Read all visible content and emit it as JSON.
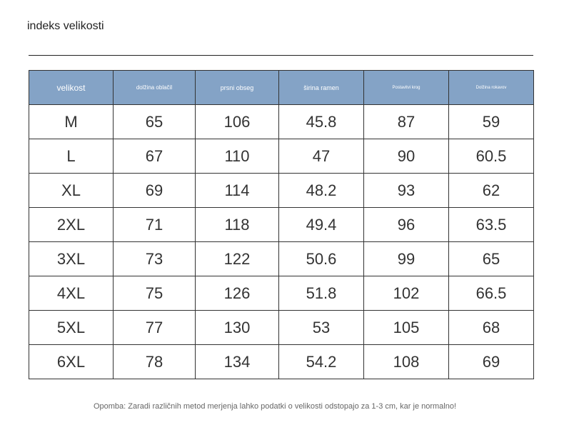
{
  "title": "indeks velikosti",
  "table": {
    "headers": [
      "velikost",
      "dolžina oblačil",
      "prsni obseg",
      "širina ramen",
      "Postavitvi krog",
      "Dolžina rokavov"
    ],
    "rows": [
      [
        "M",
        "65",
        "106",
        "45.8",
        "87",
        "59"
      ],
      [
        "L",
        "67",
        "110",
        "47",
        "90",
        "60.5"
      ],
      [
        "XL",
        "69",
        "114",
        "48.2",
        "93",
        "62"
      ],
      [
        "2XL",
        "71",
        "118",
        "49.4",
        "96",
        "63.5"
      ],
      [
        "3XL",
        "73",
        "122",
        "50.6",
        "99",
        "65"
      ],
      [
        "4XL",
        "75",
        "126",
        "51.8",
        "102",
        "66.5"
      ],
      [
        "5XL",
        "77",
        "130",
        "53",
        "105",
        "68"
      ],
      [
        "6XL",
        "78",
        "134",
        "54.2",
        "108",
        "69"
      ]
    ]
  },
  "footnote": "Opomba: Zaradi različnih metod merjenja lahko podatki o velikosti odstopajo za 1-3 cm, kar je normalno!",
  "colors": {
    "header_background": "#84a3c6",
    "header_text": "#ffffff",
    "border": "#333333"
  }
}
